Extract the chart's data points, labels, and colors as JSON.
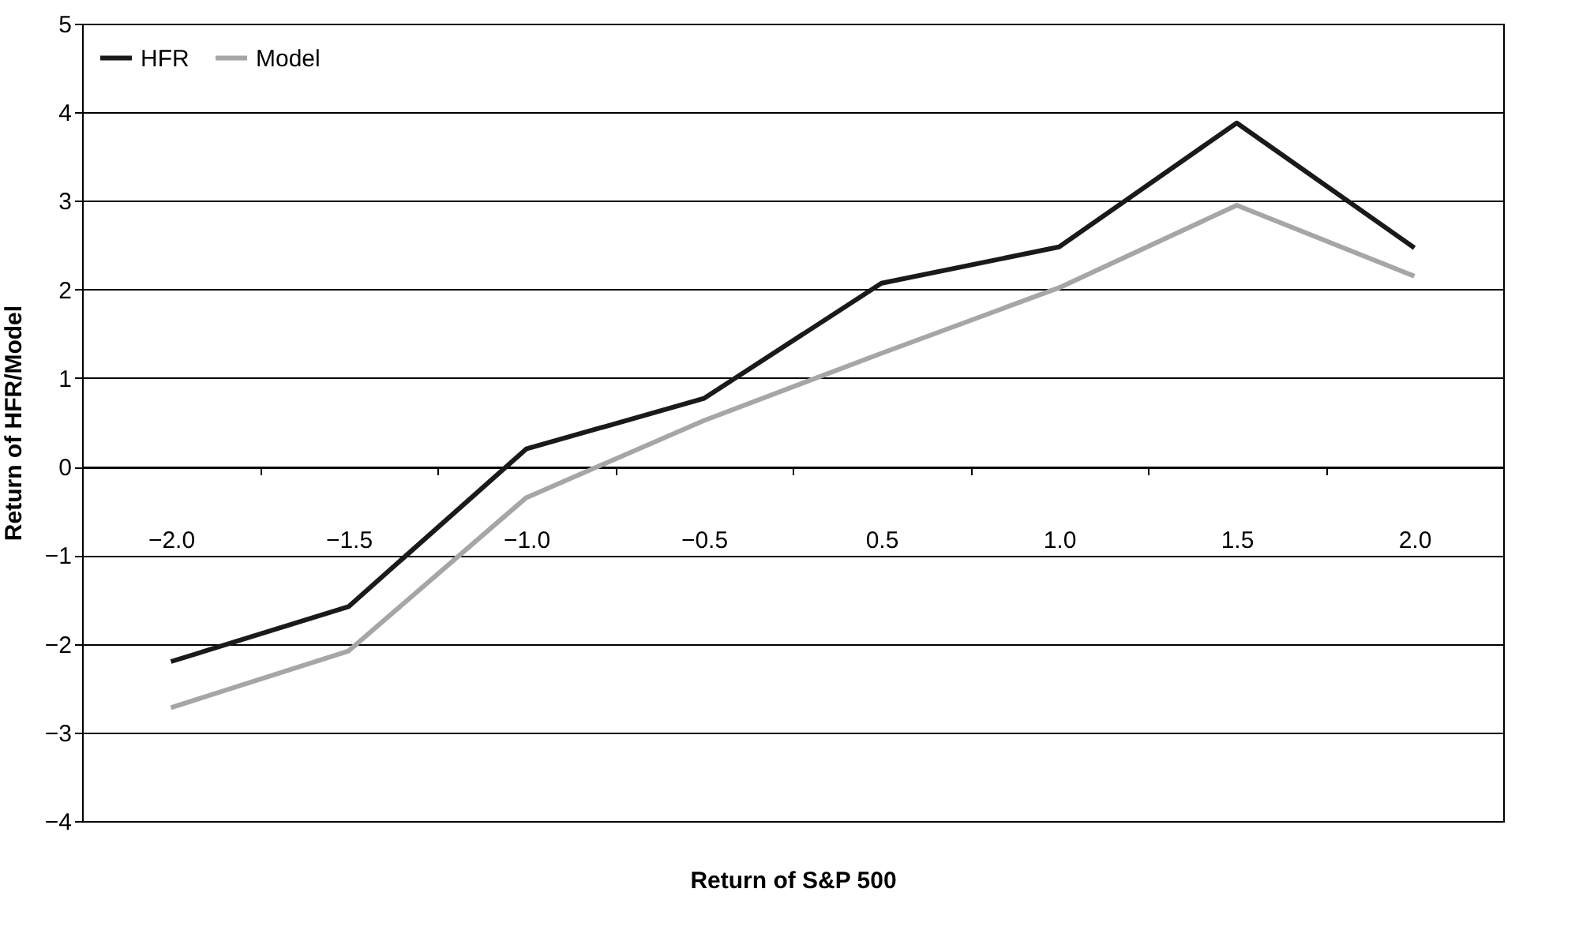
{
  "chart_data": {
    "type": "line",
    "xlabel": "Return of S&P 500",
    "ylabel": "Return of HFR/Model",
    "categories": [
      "−2.0",
      "−1.5",
      "−1.0",
      "−0.5",
      "0.5",
      "1.0",
      "1.5",
      "2.0"
    ],
    "series": [
      {
        "name": "HFR",
        "color": "#1a1a1a",
        "values": [
          -2.2,
          -1.58,
          0.2,
          0.77,
          2.07,
          2.48,
          3.88,
          2.47
        ]
      },
      {
        "name": "Model",
        "color": "#a6a6a6",
        "values": [
          -2.72,
          -2.08,
          -0.35,
          0.52,
          1.28,
          2.02,
          2.95,
          2.15
        ]
      }
    ],
    "ylim": [
      -4,
      5
    ],
    "yticks": [
      {
        "value": -4,
        "label": "−4"
      },
      {
        "value": -3,
        "label": "−3"
      },
      {
        "value": -2,
        "label": "−2"
      },
      {
        "value": -1,
        "label": "−1"
      },
      0,
      1,
      2,
      3,
      4,
      5
    ],
    "grid": "y",
    "legend": "top left",
    "marker": "none",
    "line_style": "solid"
  }
}
